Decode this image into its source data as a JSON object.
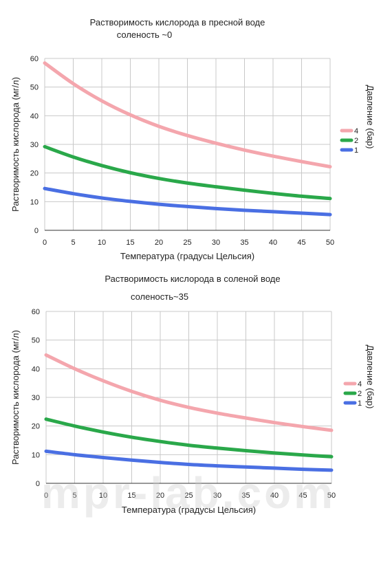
{
  "watermark": "mpr-lab.com",
  "chart_data": [
    {
      "type": "line",
      "title": "Растворимость кислорода в пресной воде",
      "subtitle": "соленость ~0",
      "xlabel": "Температура (градусы Цельсия)",
      "ylabel": "Растворимость кислорода (мг/л)",
      "legend_title": "Давление (бар)",
      "legend_position": "right",
      "grid": true,
      "xlim": [
        0,
        50
      ],
      "ylim": [
        0,
        60
      ],
      "x_ticks": [
        "0",
        "5",
        "10",
        "15",
        "20",
        "25",
        "30",
        "35",
        "40",
        "45",
        "50"
      ],
      "y_ticks": [
        "0",
        "10",
        "20",
        "30",
        "40",
        "50",
        "60"
      ],
      "x": [
        0,
        5,
        10,
        15,
        20,
        25,
        30,
        35,
        40,
        45,
        50
      ],
      "series": [
        {
          "name": "4",
          "color": "#f4a6ad",
          "values": [
            58.4,
            51.2,
            45.2,
            40.3,
            36.3,
            33.1,
            30.4,
            28.0,
            25.9,
            24.0,
            22.2
          ]
        },
        {
          "name": "2",
          "color": "#2aa84a",
          "values": [
            29.2,
            25.6,
            22.6,
            20.1,
            18.1,
            16.5,
            15.2,
            14.0,
            12.9,
            11.9,
            11.1
          ]
        },
        {
          "name": "1",
          "color": "#4a6fe3",
          "values": [
            14.6,
            12.8,
            11.3,
            10.1,
            9.1,
            8.3,
            7.6,
            7.0,
            6.5,
            6.0,
            5.5
          ]
        }
      ]
    },
    {
      "type": "line",
      "title": "Растворимость кислорода в соленой воде",
      "subtitle": "соленость~35",
      "xlabel": "Температура (градусы Цельсия)",
      "ylabel": "Растворимость кислорода (мг/л)",
      "legend_title": "Давление (бар)",
      "legend_position": "right",
      "grid": true,
      "xlim": [
        0,
        50
      ],
      "ylim": [
        0,
        60
      ],
      "x_ticks": [
        "0",
        "5",
        "10",
        "15",
        "20",
        "25",
        "30",
        "35",
        "40",
        "45",
        "50"
      ],
      "y_ticks": [
        "0",
        "10",
        "20",
        "30",
        "40",
        "50",
        "60"
      ],
      "x": [
        0,
        5,
        10,
        15,
        20,
        25,
        30,
        35,
        40,
        45,
        50
      ],
      "series": [
        {
          "name": "4",
          "color": "#f4a6ad",
          "values": [
            44.8,
            40.0,
            35.8,
            32.1,
            29.0,
            26.5,
            24.5,
            22.8,
            21.2,
            19.8,
            18.5
          ]
        },
        {
          "name": "2",
          "color": "#2aa84a",
          "values": [
            22.4,
            20.0,
            17.9,
            16.1,
            14.6,
            13.3,
            12.3,
            11.4,
            10.6,
            9.9,
            9.3
          ]
        },
        {
          "name": "1",
          "color": "#4a6fe3",
          "values": [
            11.2,
            10.0,
            9.0,
            8.1,
            7.3,
            6.6,
            6.1,
            5.7,
            5.3,
            4.9,
            4.6
          ]
        }
      ]
    }
  ]
}
